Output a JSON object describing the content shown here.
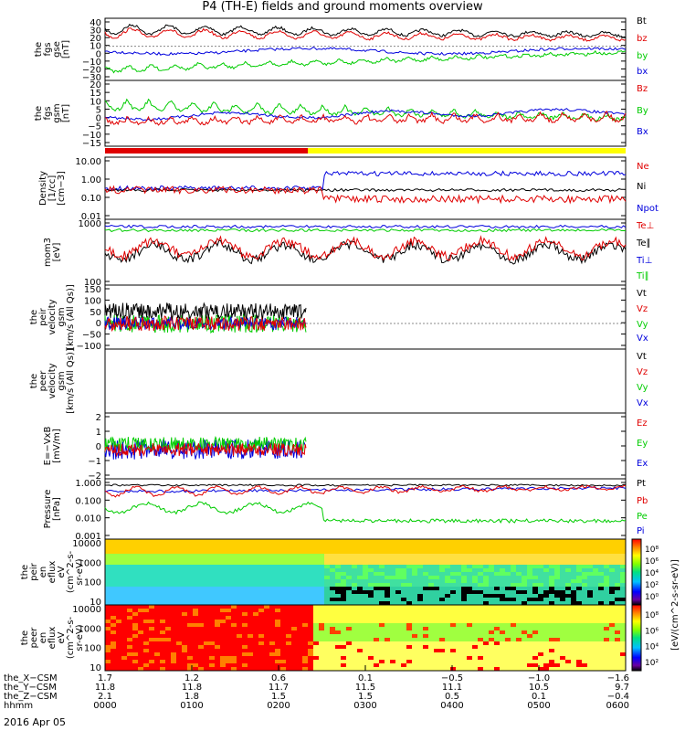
{
  "title": "P4 (TH-E) fields and ground moments overview",
  "date": "2016 Apr 05",
  "colors": {
    "black": "#000000",
    "red": "#e00000",
    "green": "#00cc00",
    "blue": "#0000dd",
    "yellow": "#ffff00"
  },
  "chart_data": [
    {
      "type": "line",
      "panel": "fgs_gse",
      "ylabel_lines": [
        "the",
        "fgs",
        "gse",
        "[nT]"
      ],
      "yticks": [
        "40",
        "30",
        "20",
        "10",
        "0",
        "−10",
        "−20",
        "−30"
      ],
      "ylim": [
        -30,
        40
      ],
      "series": [
        {
          "name": "Bt",
          "color": "#000000",
          "base": 25,
          "amp": 5
        },
        {
          "name": "bz",
          "color": "#e00000",
          "base": 22,
          "amp": 5
        },
        {
          "name": "by",
          "color": "#00cc00",
          "base": -10,
          "amp": 6
        },
        {
          "name": "bx",
          "color": "#0000dd",
          "base": 2,
          "amp": 2
        }
      ]
    },
    {
      "type": "line",
      "panel": "fgs_gsm",
      "ylabel_lines": [
        "the",
        "fgs",
        "gsm",
        "[nT]"
      ],
      "yticks": [
        "20",
        "15",
        "10",
        "5",
        "0",
        "−5",
        "−10",
        "−15"
      ],
      "ylim": [
        -18,
        22
      ],
      "series": [
        {
          "name": "Bz",
          "color": "#e00000",
          "base": -5,
          "amp": 5
        },
        {
          "name": "By",
          "color": "#00cc00",
          "base": 8,
          "amp": 6
        },
        {
          "name": "Bx",
          "color": "#0000dd",
          "base": 0,
          "amp": 2
        }
      ]
    },
    {
      "type": "line",
      "panel": "density",
      "ylabel_lines": [
        "Density",
        "[1/cc]",
        "[cm−3]"
      ],
      "yticks": [
        "10.00",
        "1.00",
        "0.10",
        "0.01"
      ],
      "log": true,
      "series": [
        {
          "name": "Ne",
          "color": "#e00000"
        },
        {
          "name": "Ni",
          "color": "#000000"
        },
        {
          "name": "Npot",
          "color": "#0000dd"
        }
      ]
    },
    {
      "type": "line",
      "panel": "temperature",
      "ylabel_lines": [
        "mom3",
        "[eV]"
      ],
      "yticks": [
        "1000",
        "100"
      ],
      "log": true,
      "series": [
        {
          "name": "Te⊥",
          "color": "#e00000"
        },
        {
          "name": "Te∥",
          "color": "#000000"
        },
        {
          "name": "Ti⊥",
          "color": "#0000dd"
        },
        {
          "name": "Ti∥",
          "color": "#00cc00"
        }
      ]
    },
    {
      "type": "line",
      "panel": "peir_velocity",
      "ylabel_lines": [
        "the",
        "peir",
        "velocity",
        "gsm",
        "[km/s (All Qs)]"
      ],
      "yticks": [
        "150",
        "100",
        "50",
        "0",
        "−50",
        "−100"
      ],
      "ylim": [
        -100,
        150
      ],
      "series": [
        {
          "name": "Vt",
          "color": "#000000"
        },
        {
          "name": "Vz",
          "color": "#e00000"
        },
        {
          "name": "Vy",
          "color": "#00cc00"
        },
        {
          "name": "Vx",
          "color": "#0000dd"
        }
      ]
    },
    {
      "type": "line",
      "panel": "peer_velocity",
      "ylabel_lines": [
        "the",
        "peer",
        "velocity",
        "gsm",
        "[km/s (All Qs)]"
      ],
      "yticks": [],
      "series": [
        {
          "name": "Vt",
          "color": "#000000"
        },
        {
          "name": "Vz",
          "color": "#e00000"
        },
        {
          "name": "Vy",
          "color": "#00cc00"
        },
        {
          "name": "Vx",
          "color": "#0000dd"
        }
      ]
    },
    {
      "type": "line",
      "panel": "efield",
      "ylabel_lines": [
        "E=−VxB",
        "[mV/m]"
      ],
      "yticks": [
        "2",
        "1",
        "0",
        "−1",
        "−2"
      ],
      "ylim": [
        -2,
        2.7
      ],
      "series": [
        {
          "name": "Ez",
          "color": "#e00000"
        },
        {
          "name": "Ey",
          "color": "#00cc00"
        },
        {
          "name": "Ex",
          "color": "#0000dd"
        }
      ]
    },
    {
      "type": "line",
      "panel": "pressure",
      "ylabel_lines": [
        "Pressure",
        "[nPa]"
      ],
      "yticks": [
        "1.000",
        "0.100",
        "0.010",
        "0.001"
      ],
      "log": true,
      "series": [
        {
          "name": "Pt",
          "color": "#000000"
        },
        {
          "name": "Pb",
          "color": "#e00000"
        },
        {
          "name": "Pe",
          "color": "#00cc00"
        },
        {
          "name": "Pi",
          "color": "#0000dd"
        }
      ]
    },
    {
      "type": "heatmap",
      "panel": "peir_eflux",
      "ylabel_lines": [
        "the",
        "peir",
        "en",
        "eflux",
        "eV",
        "(cm^2-s-",
        "sr-eV)"
      ],
      "yticks": [
        "10000",
        "1000",
        "100",
        "10"
      ]
    },
    {
      "type": "heatmap",
      "panel": "peer_eflux",
      "ylabel_lines": [
        "the",
        "peer",
        "en",
        "eflux",
        "eV",
        "(cm^2-s-",
        "sr-eV)"
      ],
      "yticks": [
        "10000",
        "1000",
        "100",
        "10"
      ]
    }
  ],
  "colorbar": {
    "label": "[eV/(cm^2-s-sr-eV)]",
    "ticks_top": [
      "10⁸",
      "10⁶",
      "10⁴",
      "10²",
      "10⁰"
    ],
    "ticks_bottom": [
      "10⁸",
      "10⁶",
      "10⁴",
      "10²"
    ]
  },
  "x_axis": {
    "rows": [
      {
        "label": "the_X−CSM",
        "values": [
          "1.7",
          "1.2",
          "0.6",
          "0.1",
          "−0.5",
          "−1.0",
          "−1.6"
        ]
      },
      {
        "label": "the_Y−CSM",
        "values": [
          "11.8",
          "11.8",
          "11.7",
          "11.5",
          "11.1",
          "10.5",
          "9.7"
        ]
      },
      {
        "label": "the_Z−CSM",
        "values": [
          "2.1",
          "1.8",
          "1.5",
          "1.5",
          "0.5",
          "0.1",
          "−0.4"
        ]
      },
      {
        "label": "hhmm",
        "values": [
          "0000",
          "0100",
          "0200",
          "0300",
          "0400",
          "0500",
          "0600"
        ]
      }
    ]
  }
}
